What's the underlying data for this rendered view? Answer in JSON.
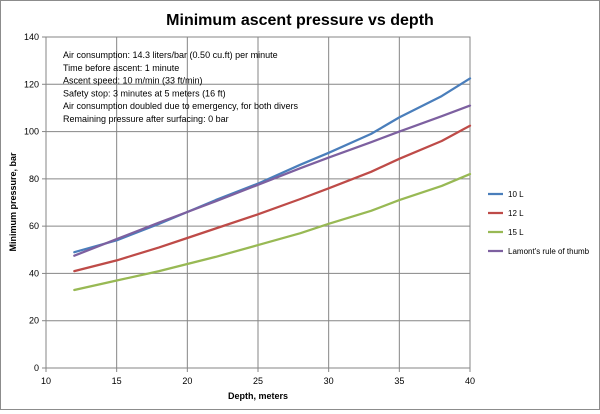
{
  "chart_data": {
    "type": "line",
    "title": "Minimum ascent pressure vs depth",
    "xlabel": "Depth, meters",
    "ylabel": "Minimum pressure, bar",
    "xlim": [
      10,
      40
    ],
    "ylim": [
      0,
      140
    ],
    "xticks": [
      10,
      15,
      20,
      25,
      30,
      35,
      40
    ],
    "yticks": [
      0,
      20,
      40,
      60,
      80,
      100,
      120,
      140
    ],
    "grid": true,
    "legend_position": "right",
    "annotation_lines": [
      "Air consumption: 14.3 liters/bar (0.50 cu.ft) per minute",
      "Time before ascent: 1 minute",
      "Ascent speed: 10 m/min (33 ft/min)",
      "Safety stop: 3 minutes at 5 meters (16 ft)",
      "Air consumption doubled due to emergency, for both divers",
      "Remaining pressure after surfacing: 0 bar"
    ],
    "x": [
      12,
      15,
      18,
      20,
      22,
      25,
      28,
      30,
      33,
      35,
      38,
      40
    ],
    "series": [
      {
        "name": "10 L",
        "color": "#4a7ebb",
        "values": [
          49,
          54,
          61,
          66,
          71,
          78,
          86,
          91,
          99,
          106,
          115,
          122.5
        ]
      },
      {
        "name": "12 L",
        "color": "#be4b48",
        "values": [
          41,
          45.5,
          51,
          55,
          59,
          65,
          71.5,
          76,
          83,
          88.5,
          96,
          102.5
        ]
      },
      {
        "name": "15 L",
        "color": "#98b954",
        "values": [
          33,
          37,
          41,
          44,
          47,
          52,
          57,
          61,
          66.5,
          71,
          77,
          82
        ]
      },
      {
        "name": "Lamont's rule of thumb",
        "color": "#7d60a0",
        "values": [
          47.5,
          54.5,
          61.5,
          66,
          70.5,
          77.5,
          84.5,
          89,
          95.5,
          100,
          106.5,
          111
        ]
      }
    ]
  }
}
